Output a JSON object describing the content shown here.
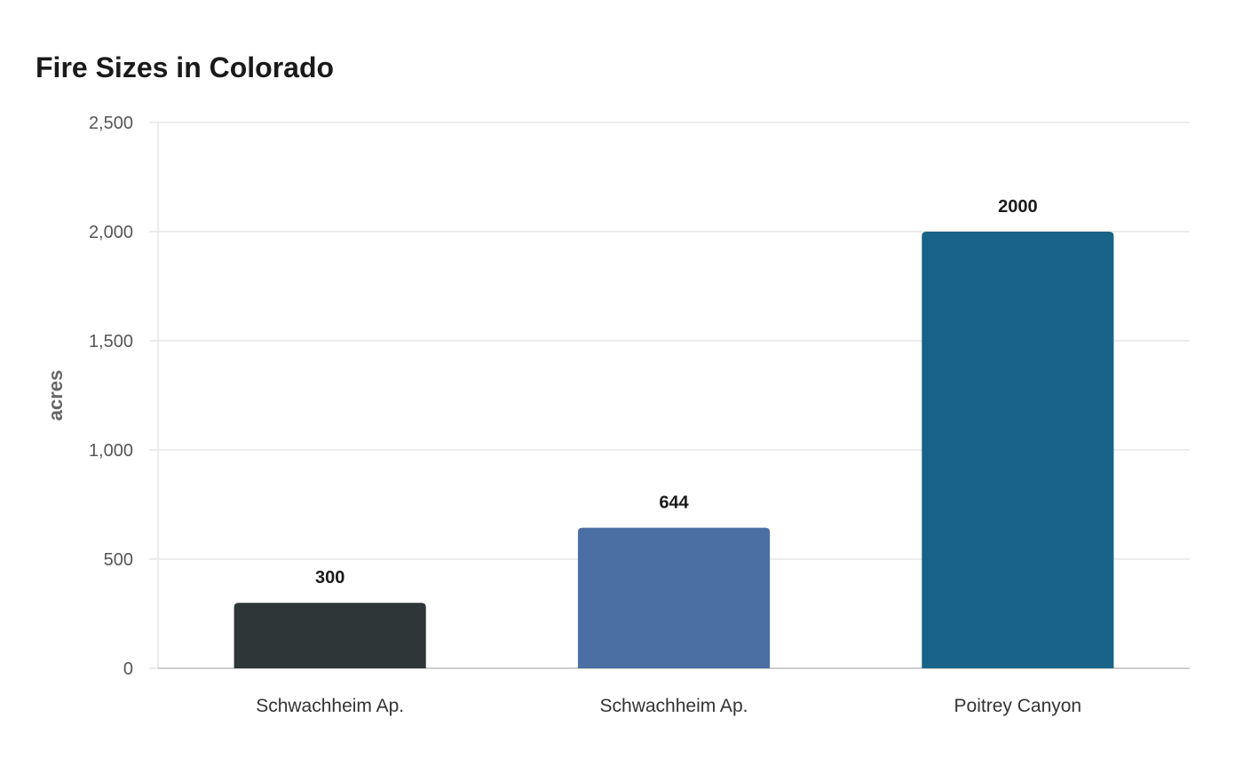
{
  "chart_data": {
    "type": "bar",
    "title": "Fire Sizes in Colorado",
    "xlabel": "",
    "ylabel": "acres",
    "categories": [
      "Schwachheim Ap.",
      "Schwachheim Ap.",
      "Poitrey Canyon"
    ],
    "values": [
      300,
      644,
      2000
    ],
    "value_labels": [
      "300",
      "644",
      "2000"
    ],
    "bar_colors": [
      "#2e3638",
      "#4b6ea3",
      "#186388"
    ],
    "ylim": [
      0,
      2500
    ],
    "yticks": [
      0,
      500,
      1000,
      1500,
      2000,
      2500
    ],
    "ytick_labels": [
      "0",
      "500",
      "1,000",
      "1,500",
      "2,000",
      "2,500"
    ],
    "grid": true,
    "legend": "none"
  }
}
